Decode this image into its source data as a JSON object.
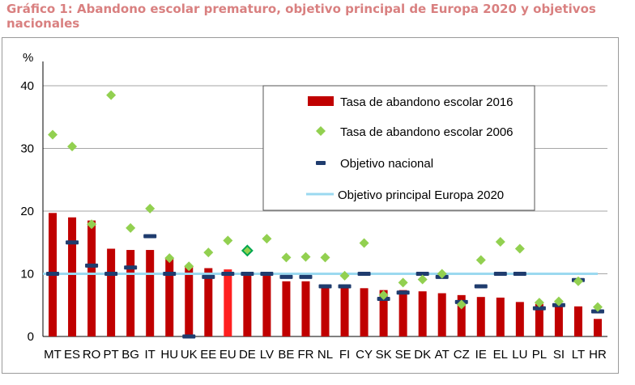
{
  "figure_title": "Gráfico 1: Abandono escolar prematuro, objetivo principal de Europa 2020 y objetivos nacionales",
  "colors": {
    "bar": "#c00000",
    "bar_highlight": "#ff2020",
    "diamond": "#92d050",
    "target": "#1f3c6e",
    "eu_target": "#9bd9f0",
    "title": "#d98080"
  },
  "chart_data": {
    "type": "bar",
    "ylabel": "%",
    "ylim": [
      0,
      42
    ],
    "yticks": [
      0,
      10,
      20,
      30,
      40
    ],
    "grid": "horizontal",
    "legend_position": "top-right",
    "eu_target": 10,
    "highlight_category": "EU",
    "categories": [
      "MT",
      "ES",
      "RO",
      "PT",
      "BG",
      "IT",
      "HU",
      "UK",
      "EE",
      "EU",
      "DE",
      "LV",
      "BE",
      "FR",
      "NL",
      "FI",
      "CY",
      "SK",
      "SE",
      "DK",
      "AT",
      "CZ",
      "IE",
      "EL",
      "LU",
      "PL",
      "SI",
      "LT",
      "HR"
    ],
    "series": [
      {
        "name": "Tasa de abandono escolar 2016",
        "kind": "bar",
        "values": [
          19.7,
          19.0,
          18.5,
          14.0,
          13.8,
          13.8,
          12.4,
          11.2,
          10.9,
          10.7,
          10.2,
          10.0,
          8.8,
          8.8,
          8.0,
          7.9,
          7.7,
          7.4,
          7.4,
          7.2,
          6.9,
          6.6,
          6.3,
          6.2,
          5.5,
          5.2,
          4.9,
          4.8,
          2.8
        ]
      },
      {
        "name": "Tasa de abandono escolar 2006",
        "kind": "diamond",
        "values": [
          32.2,
          30.3,
          17.9,
          38.5,
          17.3,
          20.4,
          12.5,
          11.2,
          13.4,
          15.3,
          13.7,
          15.6,
          12.6,
          12.7,
          12.6,
          9.7,
          14.9,
          6.6,
          8.6,
          9.1,
          10.0,
          5.1,
          12.2,
          15.1,
          14.0,
          5.4,
          5.6,
          8.8,
          4.7
        ]
      },
      {
        "name": "Objetivo nacional",
        "kind": "dash",
        "values": [
          10.0,
          15.0,
          11.3,
          10.0,
          11.0,
          16.0,
          10.0,
          0.0,
          9.5,
          10.0,
          10.0,
          10.0,
          9.5,
          9.5,
          8.0,
          8.0,
          10.0,
          6.0,
          7.0,
          10.0,
          9.5,
          5.5,
          8.0,
          10.0,
          10.0,
          4.5,
          5.0,
          9.0,
          4.0
        ]
      },
      {
        "name": "Objetivo principal Europa 2020",
        "kind": "line",
        "value": 10
      }
    ]
  }
}
